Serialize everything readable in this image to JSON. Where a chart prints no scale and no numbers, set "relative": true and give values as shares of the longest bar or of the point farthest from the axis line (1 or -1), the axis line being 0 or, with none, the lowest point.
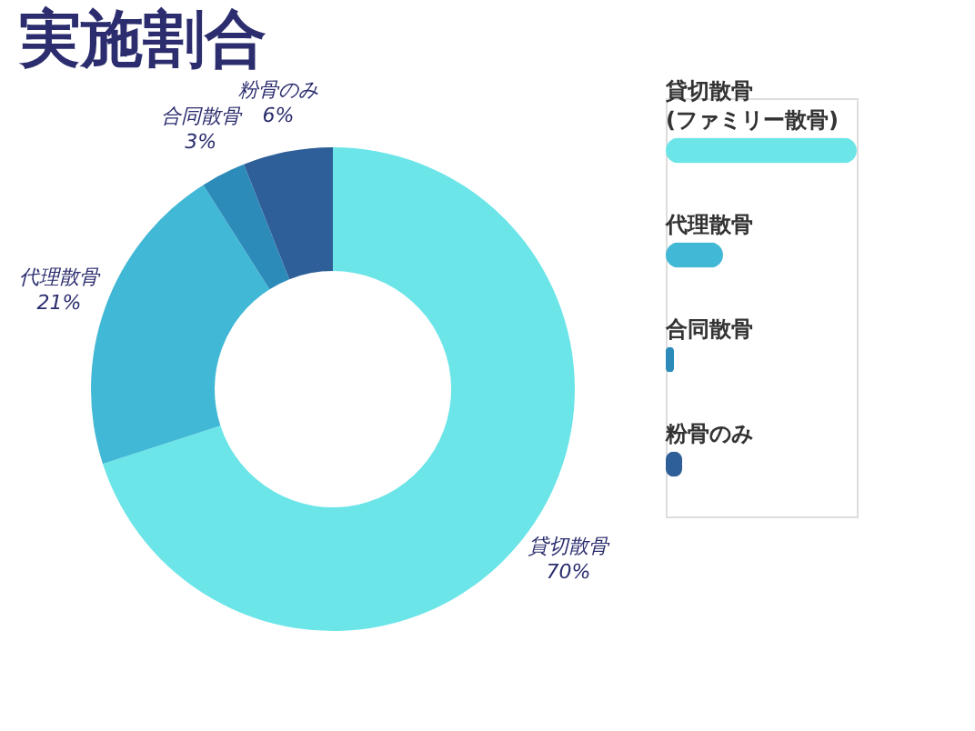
{
  "chart_data": [
    {
      "type": "donut",
      "title": "実施割合",
      "categories": [
        "貸切散骨",
        "代理散骨",
        "合同散骨",
        "粉骨のみ"
      ],
      "values": [
        70,
        21,
        3,
        6
      ],
      "value_labels": [
        "70%",
        "21%",
        "3%",
        "6%"
      ],
      "colors": [
        "#6ce5e8",
        "#41b8d5",
        "#2d8bba",
        "#2f5f98"
      ]
    },
    {
      "type": "bar",
      "orientation": "horizontal",
      "relative": true,
      "categories": [
        "貸切散骨\n(ファミリー散骨)",
        "代理散骨",
        "合同散骨",
        "粉骨のみ"
      ],
      "values": [
        1,
        0.3,
        0.043,
        0.086
      ],
      "colors": [
        "#6ce5e8",
        "#41b8d5",
        "#2d8bba",
        "#2f5f98"
      ]
    }
  ]
}
